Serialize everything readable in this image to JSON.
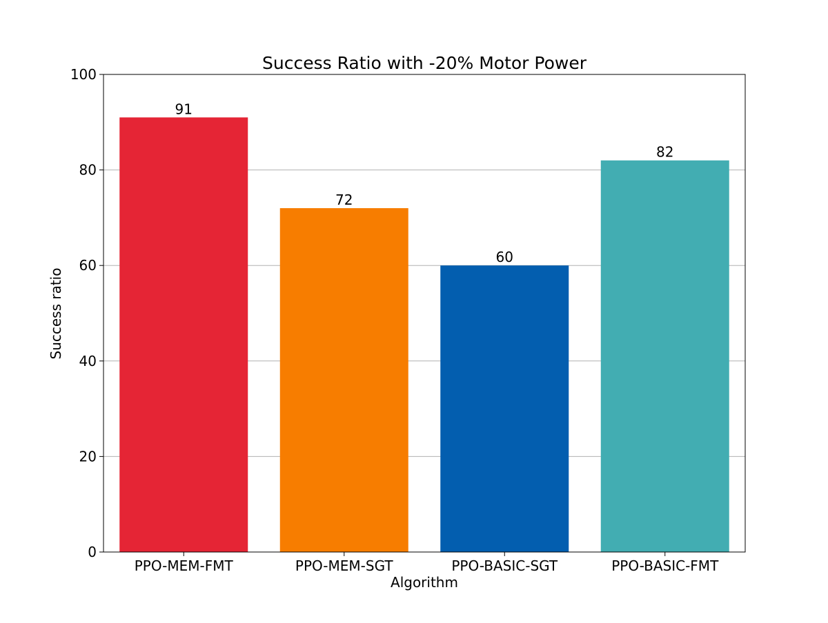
{
  "chart_data": {
    "type": "bar",
    "title": "Success Ratio with -20% Motor Power",
    "xlabel": "Algorithm",
    "ylabel": "Success ratio",
    "categories": [
      "PPO-MEM-FMT",
      "PPO-MEM-SGT",
      "PPO-BASIC-SGT",
      "PPO-BASIC-FMT"
    ],
    "values": [
      91,
      72,
      60,
      82
    ],
    "value_labels": [
      "91",
      "72",
      "60",
      "82"
    ],
    "colors": [
      "#e52535",
      "#f77d00",
      "#035eaf",
      "#42adb2"
    ],
    "ylim": [
      0,
      100
    ],
    "yticks": [
      0,
      20,
      40,
      60,
      80,
      100
    ],
    "ytick_labels": [
      "0",
      "20",
      "40",
      "60",
      "80",
      "100"
    ],
    "grid": "horizontal",
    "grid_color": "#b0b0b0",
    "legend": "none"
  }
}
